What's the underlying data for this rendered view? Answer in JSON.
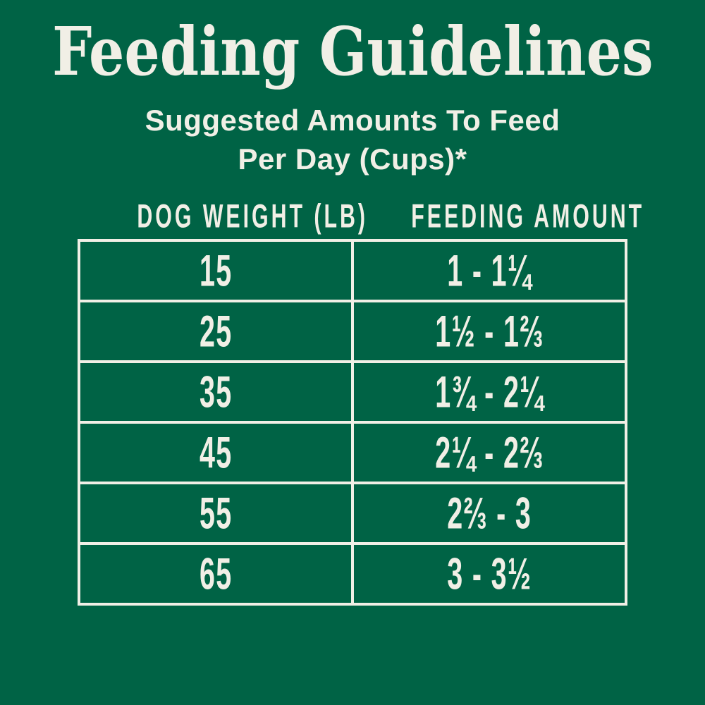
{
  "colors": {
    "background": "#006345",
    "ink": "#F1EFE6",
    "table_border": "#F1EFE6"
  },
  "header": {
    "title": "Feeding Guidelines",
    "subtitle_line1": "Suggested Amounts To Feed",
    "subtitle_line2": "Per Day (Cups)*"
  },
  "table": {
    "col1_header": "DOG WEIGHT (LB)",
    "col2_header": "FEEDING AMOUNT",
    "rows": [
      {
        "weight": "15",
        "amount": "1 - 1¼"
      },
      {
        "weight": "25",
        "amount": "1½ - 1⅔"
      },
      {
        "weight": "35",
        "amount": "1¾ - 2¼"
      },
      {
        "weight": "45",
        "amount": "2¼ - 2⅔"
      },
      {
        "weight": "55",
        "amount": "2⅔ - 3"
      },
      {
        "weight": "65",
        "amount": "3 - 3½"
      }
    ]
  },
  "chart_data": {
    "type": "table",
    "title": "Feeding Guidelines",
    "subtitle": "Suggested Amounts To Feed Per Day (Cups)*",
    "columns": [
      "DOG WEIGHT (LB)",
      "FEEDING AMOUNT"
    ],
    "rows": [
      [
        "15",
        "1 - 1¼"
      ],
      [
        "25",
        "1½ - 1⅔"
      ],
      [
        "35",
        "1¾ - 2¼"
      ],
      [
        "45",
        "2¼ - 2⅔"
      ],
      [
        "55",
        "2⅔ - 3"
      ],
      [
        "65",
        "3 - 3½"
      ]
    ],
    "rows_numeric": [
      {
        "weight_lb": 15,
        "cups_min": 1,
        "cups_max": 1.25
      },
      {
        "weight_lb": 25,
        "cups_min": 1.5,
        "cups_max": 1.67
      },
      {
        "weight_lb": 35,
        "cups_min": 1.75,
        "cups_max": 2.25
      },
      {
        "weight_lb": 45,
        "cups_min": 2.25,
        "cups_max": 2.67
      },
      {
        "weight_lb": 55,
        "cups_min": 2.67,
        "cups_max": 3
      },
      {
        "weight_lb": 65,
        "cups_min": 3,
        "cups_max": 3.5
      }
    ]
  }
}
